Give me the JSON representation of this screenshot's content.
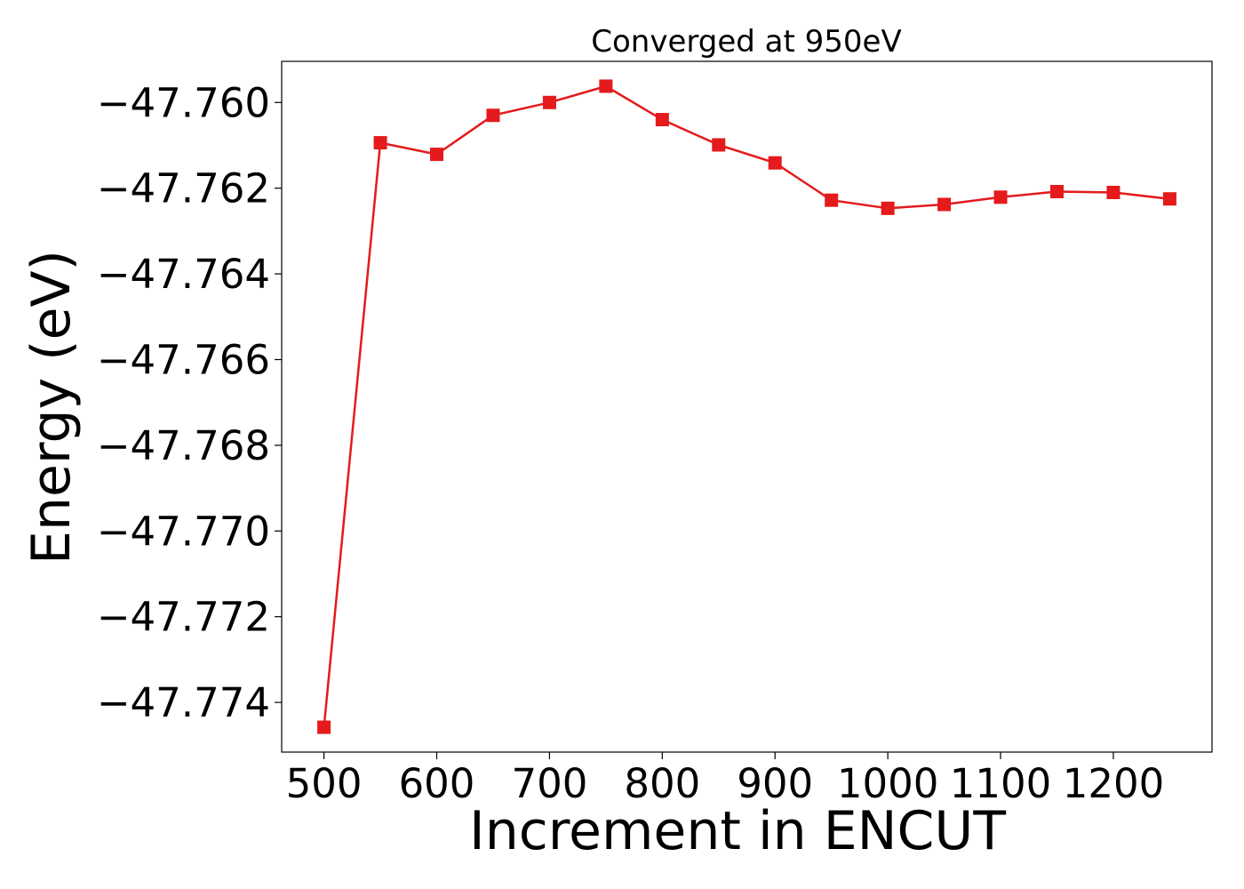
{
  "chart_data": {
    "type": "line",
    "title": "Converged at 950eV",
    "xlabel": "Increment in ENCUT",
    "ylabel": "Energy (eV)",
    "x": [
      500,
      550,
      600,
      650,
      700,
      750,
      800,
      850,
      900,
      950,
      1000,
      1050,
      1100,
      1150,
      1200,
      1250
    ],
    "series": [
      {
        "color": "#e41a1c",
        "marker": "square",
        "values": [
          -47.77458,
          -47.76094,
          -47.76121,
          -47.7603,
          -47.76,
          -47.75962,
          -47.7604,
          -47.76099,
          -47.76141,
          -47.76228,
          -47.76247,
          -47.76238,
          -47.76221,
          -47.76208,
          -47.7621,
          -47.76225
        ]
      }
    ],
    "xticks": [
      500,
      600,
      700,
      800,
      900,
      1000,
      1100,
      1200
    ],
    "xtick_labels": [
      "500",
      "600",
      "700",
      "800",
      "900",
      "1000",
      "1100",
      "1200"
    ],
    "yticks": [
      -47.76,
      -47.762,
      -47.764,
      -47.766,
      -47.768,
      -47.77,
      -47.772,
      -47.774
    ],
    "ytick_labels": [
      "−47.760",
      "−47.762",
      "−47.764",
      "−47.766",
      "−47.768",
      "−47.770",
      "−47.772",
      "−47.774"
    ],
    "xlim": [
      462.5,
      1287.5
    ],
    "ylim": [
      -47.77516,
      -47.75904
    ],
    "grid": false,
    "legend": "none"
  }
}
